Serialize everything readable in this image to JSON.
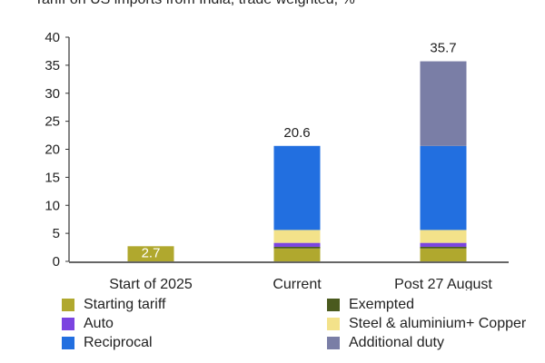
{
  "chart_data": {
    "type": "bar",
    "stacked": true,
    "title": "Tariff on US imports from India, trade weighted, %",
    "categories": [
      "Start of 2025",
      "Current",
      "Post 27 August"
    ],
    "ylim": [
      0,
      40
    ],
    "yticks": [
      0,
      5,
      10,
      15,
      20,
      25,
      30,
      35,
      40
    ],
    "totals": [
      "2.7",
      "20.6",
      "35.7"
    ],
    "grid": false,
    "legend_position": "bottom",
    "series": [
      {
        "name": "Starting tariff",
        "color": "#b0a82e",
        "values": [
          2.7,
          2.3,
          2.3
        ]
      },
      {
        "name": "Exempted",
        "color": "#4a5a1e",
        "values": [
          0,
          0.3,
          0.3
        ]
      },
      {
        "name": "Auto",
        "color": "#7b44e0",
        "values": [
          0,
          0.7,
          0.7
        ]
      },
      {
        "name": "Steel & aluminium+ Copper",
        "color": "#f3e28a",
        "values": [
          0,
          2.3,
          2.3
        ]
      },
      {
        "name": "Reciprocal",
        "color": "#226fe0",
        "values": [
          0,
          15.0,
          15.0
        ]
      },
      {
        "name": "Additional duty",
        "color": "#7a7ea6",
        "values": [
          0,
          0,
          15.1
        ]
      }
    ]
  }
}
